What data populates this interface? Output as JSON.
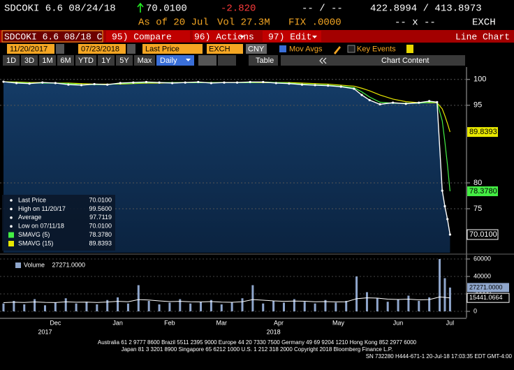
{
  "header": {
    "ticker": "SDCOKI 6.6 08/24/18",
    "price": "70.0100",
    "change": "-2.820",
    "bid_ask": "-- / --",
    "range": "422.8994 / 413.8973",
    "as_of": "As of 20 Jul",
    "volume": "Vol 27.3M",
    "fix": "FIX .0000",
    "size": "-- x --",
    "source": "EXCH"
  },
  "toolbar": {
    "security": "SDCOKI 6.6 08/18 C",
    "compare": "95) Compare",
    "actions": "96) Actions",
    "edit": "97) Edit",
    "view": "Line Chart"
  },
  "controls": {
    "start": "11/20/2017",
    "end": "07/23/2018",
    "field": "Last Price",
    "source": "EXCH",
    "currency": "CNY",
    "mov_avgs": "Mov Avgs",
    "key_events": "Key Events"
  },
  "tabs": {
    "periods": [
      "1D",
      "3D",
      "1M",
      "6M",
      "YTD",
      "1Y",
      "5Y",
      "Max"
    ],
    "frequency": "Daily",
    "table": "Table",
    "content": "Chart Content"
  },
  "chart_data": [
    {
      "type": "area",
      "xlim": [
        0,
        177
      ],
      "ylim": [
        66.5,
        102.4
      ],
      "yticks": [
        100,
        95,
        80,
        75
      ],
      "grid": true,
      "x": [
        0,
        5,
        10,
        15,
        20,
        25,
        30,
        35,
        40,
        45,
        50,
        55,
        60,
        65,
        70,
        75,
        80,
        85,
        90,
        95,
        100,
        105,
        110,
        115,
        120,
        125,
        130,
        135,
        138,
        141,
        145,
        150,
        155,
        160,
        164,
        167,
        169,
        170,
        171,
        172
      ],
      "series": [
        {
          "name": "Last Price",
          "color": "#ffffff",
          "legend_value": "70.0100",
          "values": [
            99.56,
            99.3,
            99.2,
            99.4,
            99.3,
            99.0,
            98.9,
            99.1,
            99.0,
            99.3,
            99.4,
            99.5,
            99.4,
            99.3,
            99.4,
            99.5,
            99.3,
            99.4,
            99.4,
            99.5,
            99.5,
            99.3,
            99.2,
            99.0,
            98.9,
            98.8,
            98.6,
            98.2,
            97.0,
            96.0,
            95.2,
            95.5,
            95.3,
            95.5,
            95.8,
            95.6,
            78.5,
            75.5,
            73.0,
            70.01
          ]
        },
        {
          "name": "SMAVG (5)",
          "color": "#44ee44",
          "legend_value": "78.3780",
          "values": [
            99.56,
            99.4,
            99.3,
            99.3,
            99.3,
            99.2,
            99.0,
            99.0,
            99.0,
            99.2,
            99.3,
            99.4,
            99.4,
            99.4,
            99.4,
            99.4,
            99.4,
            99.4,
            99.4,
            99.4,
            99.5,
            99.4,
            99.3,
            99.1,
            99.0,
            98.9,
            98.7,
            98.4,
            97.6,
            96.6,
            95.6,
            95.4,
            95.4,
            95.4,
            95.6,
            95.6,
            92.0,
            88.0,
            83.5,
            78.378
          ]
        },
        {
          "name": "SMAVG (15)",
          "color": "#e8e800",
          "legend_value": "89.8393",
          "values": [
            99.56,
            99.5,
            99.4,
            99.4,
            99.3,
            99.3,
            99.2,
            99.1,
            99.1,
            99.1,
            99.2,
            99.3,
            99.3,
            99.4,
            99.4,
            99.4,
            99.4,
            99.4,
            99.4,
            99.4,
            99.4,
            99.4,
            99.4,
            99.3,
            99.2,
            99.1,
            98.9,
            98.7,
            98.3,
            97.8,
            97.0,
            96.2,
            95.7,
            95.5,
            95.5,
            95.5,
            94.3,
            93.0,
            91.5,
            89.8393
          ]
        }
      ],
      "stats": [
        {
          "label": "High on 11/20/17",
          "value": "99.5600"
        },
        {
          "label": "Average",
          "value": "97.7119"
        },
        {
          "label": "Low on 07/11/18",
          "value": "70.0100"
        }
      ]
    },
    {
      "type": "bar",
      "xlim": [
        0,
        177
      ],
      "ylim": [
        0,
        64000
      ],
      "yticks": [
        0,
        20000,
        40000,
        60000
      ],
      "xticks": [
        {
          "value": 20,
          "label": "Dec"
        },
        {
          "value": 44,
          "label": "Jan"
        },
        {
          "value": 64,
          "label": "Feb"
        },
        {
          "value": 84,
          "label": "Mar"
        },
        {
          "value": 106,
          "label": "Apr"
        },
        {
          "value": 129,
          "label": "May"
        },
        {
          "value": 152,
          "label": "Jun"
        },
        {
          "value": 172,
          "label": "Jul"
        }
      ],
      "year_ticks": [
        {
          "value": 16,
          "label": "2017"
        },
        {
          "value": 104,
          "label": "2018"
        }
      ],
      "x": [
        0,
        4,
        8,
        12,
        16,
        20,
        24,
        28,
        32,
        36,
        40,
        44,
        48,
        52,
        56,
        60,
        64,
        68,
        72,
        76,
        80,
        84,
        88,
        92,
        96,
        100,
        104,
        108,
        112,
        116,
        120,
        124,
        128,
        132,
        136,
        140,
        144,
        148,
        152,
        156,
        160,
        164,
        168,
        170,
        172
      ],
      "series": [
        {
          "name": "Volume",
          "color": "#8fa6cc",
          "legend_value": "27271.0000",
          "values": [
            9000,
            12000,
            8000,
            14000,
            7000,
            10000,
            15000,
            9000,
            11000,
            8000,
            13000,
            16000,
            9000,
            30000,
            12000,
            8000,
            10000,
            14000,
            9000,
            11000,
            13000,
            8000,
            10000,
            15000,
            30000,
            9000,
            12000,
            10000,
            14000,
            11000,
            9000,
            13000,
            10000,
            12000,
            40000,
            22000,
            15000,
            11000,
            14000,
            18000,
            12000,
            16000,
            60000,
            38000,
            27271
          ]
        },
        {
          "color": "#ffffff",
          "legend_value": "15441.0664",
          "values": [
            10000,
            10500,
            10200,
            10800,
            10300,
            10100,
            10900,
            10500,
            10600,
            10200,
            10700,
            11500,
            11000,
            13500,
            13000,
            12000,
            11200,
            11500,
            11000,
            10800,
            11200,
            10600,
            10400,
            11000,
            13500,
            12800,
            12000,
            11500,
            11800,
            11600,
            11000,
            11200,
            10800,
            11000,
            14500,
            15500,
            15200,
            14000,
            13600,
            14000,
            13200,
            13500,
            16500,
            16000,
            15441
          ]
        }
      ]
    }
  ],
  "footer": [
    "Australia 61 2 9777 8600 Brazil 5511 2395 9000 Europe 44 20 7330 7500 Germany 49 69 9204 1210 Hong Kong 852 2977 6000",
    "Japan 81 3 3201 8900        Singapore 65 6212 1000        U.S. 1 212 318 2000              Copyright 2018 Bloomberg Finance L.P.",
    "SN 732280 H444-671-1 20-Jul-18 17:03:35 EDT  GMT-4:00"
  ]
}
